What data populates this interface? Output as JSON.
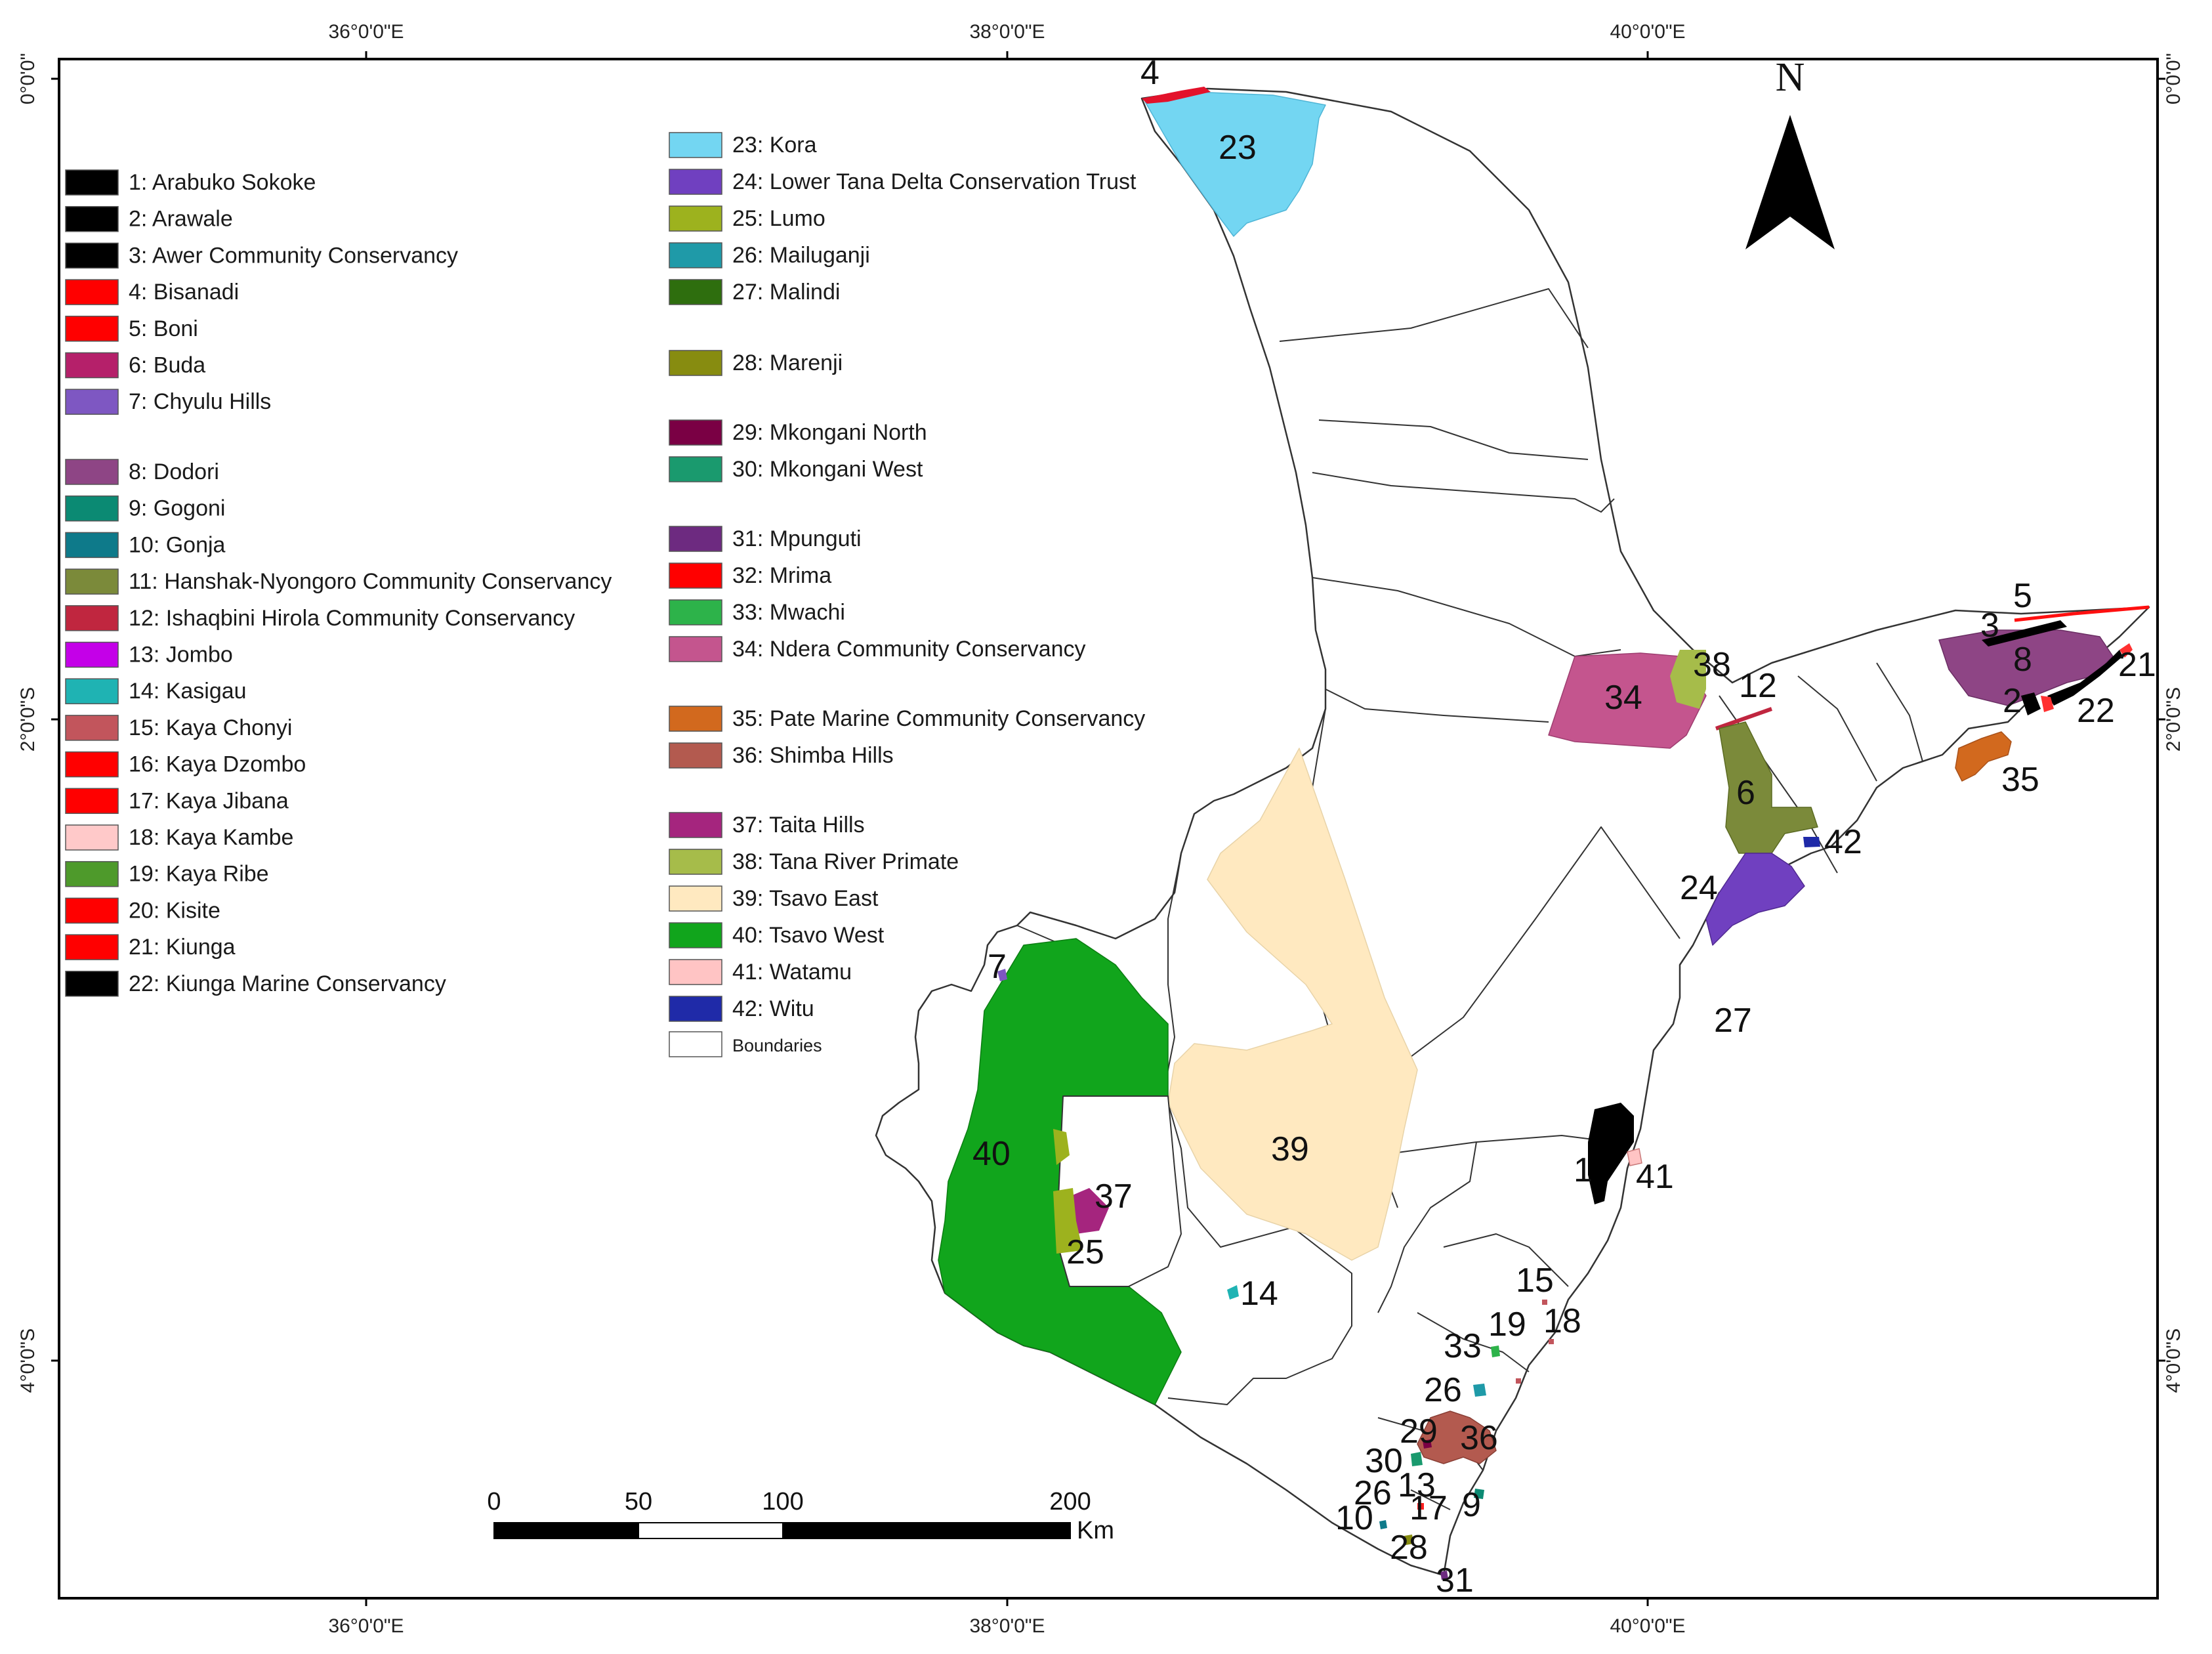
{
  "coords": {
    "top": [
      "36°0'0\"E",
      "38°0'0\"E",
      "40°0'0\"E"
    ],
    "bottom": [
      "36°0'0\"E",
      "38°0'0\"E",
      "40°0'0\"E"
    ],
    "left": [
      "0°0'0\"",
      "2°0'0\"S",
      "4°0'0\"S"
    ],
    "right": [
      "0°0'0\"",
      "2°0'0\"S",
      "4°0'0\"S"
    ]
  },
  "north": "N",
  "scale": {
    "ticks": [
      "0",
      "50",
      "100",
      "200"
    ],
    "unit": "Km"
  },
  "legend_left": [
    {
      "label": "1:  Arabuko Sokoke",
      "color": "#000000"
    },
    {
      "label": "2:  Arawale",
      "color": "#000000"
    },
    {
      "label": "3:  Awer Community Conservancy",
      "color": "#000000"
    },
    {
      "label": "4:  Bisanadi",
      "color": "#ff0000"
    },
    {
      "label": "5:  Boni",
      "color": "#ff0000"
    },
    {
      "label": "6:  Buda",
      "color": "#b5206a"
    },
    {
      "label": "7:  Chyulu Hills",
      "color": "#7e57c2"
    },
    {
      "label": "8:  Dodori",
      "color": "#8e4585"
    },
    {
      "label": "9:  Gogoni",
      "color": "#0b8a73"
    },
    {
      "label": "10: Gonja",
      "color": "#0e7a8a"
    },
    {
      "label": "11:  Hanshak-Nyongoro Community Conservancy",
      "color": "#7b8a3a"
    },
    {
      "label": "12:  Ishaqbini Hirola Community Conservancy",
      "color": "#c0263f"
    },
    {
      "label": "13:  Jombo",
      "color": "#c400e8"
    },
    {
      "label": "14:  Kasigau",
      "color": "#1fb3b3"
    },
    {
      "label": "15:  Kaya Chonyi",
      "color": "#c2555c"
    },
    {
      "label": "16:  Kaya Dzombo",
      "color": "#ff0000"
    },
    {
      "label": "17:  Kaya Jibana",
      "color": "#ff0000"
    },
    {
      "label": "18:  Kaya Kambe",
      "color": "#ffc9c9"
    },
    {
      "label": "19:  Kaya Ribe",
      "color": "#4e9a2b"
    },
    {
      "label": "20:  Kisite",
      "color": "#ff0000"
    },
    {
      "label": "21:  Kiunga",
      "color": "#ff0000"
    },
    {
      "label": "22:  Kiunga Marine Conservancy",
      "color": "#000000"
    }
  ],
  "legend_right": [
    {
      "label": "23:  Kora",
      "color": "#73d6f2"
    },
    {
      "label": "24:  Lower Tana Delta Conservation Trust",
      "color": "#7040c0"
    },
    {
      "label": "25:  Lumo",
      "color": "#9db21e"
    },
    {
      "label": "26:  Mailuganji",
      "color": "#1f9aa8"
    },
    {
      "label": "27:  Malindi",
      "color": "#2e6e0e"
    },
    {
      "label": "28:  Marenji",
      "color": "#878c10"
    },
    {
      "label": "29:  Mkongani North",
      "color": "#7a0044"
    },
    {
      "label": "30:  Mkongani West",
      "color": "#1a9a6e"
    },
    {
      "label": "31:  Mpunguti",
      "color": "#6d2a80"
    },
    {
      "label": "32:  Mrima",
      "color": "#ff0000"
    },
    {
      "label": "33:  Mwachi",
      "color": "#2db34a"
    },
    {
      "label": "34:  Ndera Community Conservancy",
      "color": "#c4558e"
    },
    {
      "label": "35:  Pate Marine Community Conservancy",
      "color": "#d2691e"
    },
    {
      "label": "36:  Shimba Hills",
      "color": "#b35a4f"
    },
    {
      "label": "37:  Taita Hills",
      "color": "#a5257e"
    },
    {
      "label": "38:  Tana River Primate",
      "color": "#a6bc4a"
    },
    {
      "label": "39: Tsavo East",
      "color": "#ffe9c0"
    },
    {
      "label": "40:  Tsavo West",
      "color": "#11a51c"
    },
    {
      "label": "41:  Watamu",
      "color": "#ffc4c4"
    },
    {
      "label": "42:  Witu",
      "color": "#1f2aa8"
    },
    {
      "label": "Boundaries",
      "color": "#ffffff"
    }
  ],
  "map_labels": [
    "1",
    "2",
    "3",
    "4",
    "5",
    "6",
    "7",
    "8",
    "9",
    "10",
    "12",
    "13",
    "14",
    "15",
    "17",
    "18",
    "19",
    "21",
    "22",
    "23",
    "24",
    "25",
    "26",
    "26",
    "27",
    "28",
    "29",
    "30",
    "31",
    "33",
    "34",
    "35",
    "36",
    "37",
    "38",
    "39",
    "40",
    "41",
    "42"
  ]
}
